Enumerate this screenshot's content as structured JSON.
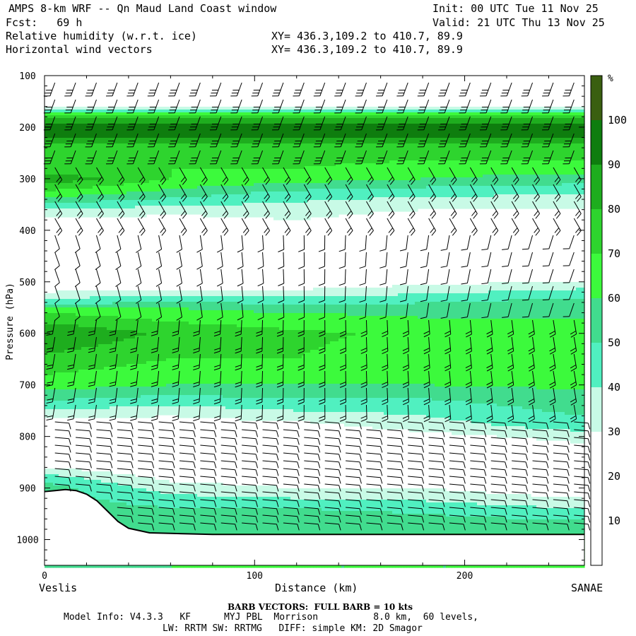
{
  "header": {
    "line1_left": "AMPS 8-km WRF -- Qn Maud Land Coast window",
    "line1_right": "Init: 00 UTC Tue 11 Nov 25",
    "line2_left": "Fcst:   69 h",
    "line2_right": "Valid: 21 UTC Thu 13 Nov 25",
    "line3_left": "Relative humidity (w.r.t. ice)",
    "line3_xy": "XY= 436.3,109.2 to 410.7, 89.9",
    "line4_left": "Horizontal wind vectors",
    "line4_xy": "XY= 436.3,109.2 to 410.7, 89.9"
  },
  "axis_labels": {
    "ylabel": "Pressure (hPa)",
    "xlabel": "Distance (km)",
    "left_endpoint": "Veslis",
    "right_endpoint": "SANAE"
  },
  "footer": {
    "barb_note": "BARB VECTORS:  FULL BARB = 10 kts",
    "model_line1": "Model Info: V4.3.3   KF      MYJ PBL  Morrison          8.0 km,  60 levels,",
    "model_line2": "LW: RRTM SW: RRTMG   DIFF: simple KM: 2D Smagor"
  },
  "colors": {
    "rh_levels": [
      "#ffffff",
      "#ffffff",
      "#ffffff",
      "#c8fae6",
      "#50f0c0",
      "#41dc8e",
      "#3cfa3c",
      "#2ed42e",
      "#1ead1e",
      "#0e7d0e",
      "#3a5f10"
    ]
  },
  "chart_data": {
    "type": "heatmap",
    "title": "Relative humidity (w.r.t. ice)",
    "xlabel": "Distance (km)",
    "ylabel": "Pressure (hPa)",
    "xlim": [
      0,
      257
    ],
    "ylim": [
      1050,
      100
    ],
    "x_ticks": [
      0,
      100,
      200
    ],
    "y_ticks": [
      100,
      200,
      300,
      400,
      500,
      600,
      700,
      800,
      900,
      1000
    ],
    "colorbar": {
      "unit": "%",
      "ticks": [
        10,
        20,
        30,
        40,
        50,
        60,
        70,
        80,
        90,
        100
      ],
      "bounds": [
        0,
        10,
        20,
        30,
        40,
        50,
        60,
        70,
        80,
        90,
        100,
        110
      ]
    },
    "rh_profiles": [
      {
        "x_km": 0,
        "p_hPa": [
          100,
          150,
          165,
          180,
          200,
          215,
          230,
          250,
          280,
          300,
          330,
          360,
          400,
          500,
          540,
          560,
          600,
          640,
          700,
          740,
          780,
          820,
          860,
          880,
          900
        ],
        "rh": [
          10,
          15,
          40,
          75,
          100,
          95,
          80,
          75,
          72,
          88,
          65,
          40,
          15,
          15,
          45,
          70,
          90,
          80,
          65,
          45,
          20,
          15,
          30,
          45,
          55
        ]
      },
      {
        "x_km": 60,
        "p_hPa": [
          100,
          150,
          165,
          180,
          200,
          215,
          230,
          250,
          280,
          300,
          330,
          360,
          400,
          500,
          520,
          550,
          600,
          640,
          700,
          730,
          760,
          800,
          850,
          900,
          950,
          980
        ],
        "rh": [
          10,
          15,
          40,
          75,
          100,
          95,
          80,
          75,
          70,
          70,
          55,
          35,
          15,
          15,
          35,
          60,
          78,
          72,
          60,
          45,
          30,
          15,
          15,
          35,
          55,
          60
        ]
      },
      {
        "x_km": 120,
        "p_hPa": [
          100,
          150,
          165,
          180,
          200,
          215,
          230,
          250,
          280,
          300,
          330,
          360,
          400,
          480,
          500,
          530,
          560,
          600,
          650,
          700,
          740,
          780,
          820,
          860,
          900,
          950,
          990
        ],
        "rh": [
          10,
          15,
          40,
          75,
          100,
          95,
          80,
          75,
          70,
          65,
          45,
          35,
          25,
          15,
          20,
          40,
          60,
          72,
          70,
          60,
          45,
          25,
          15,
          15,
          30,
          55,
          60
        ]
      },
      {
        "x_km": 180,
        "p_hPa": [
          100,
          150,
          165,
          180,
          200,
          215,
          230,
          250,
          280,
          300,
          330,
          360,
          400,
          480,
          520,
          550,
          600,
          640,
          700,
          740,
          780,
          820,
          850,
          900,
          950,
          990
        ],
        "rh": [
          10,
          15,
          40,
          75,
          100,
          95,
          80,
          75,
          65,
          60,
          42,
          30,
          15,
          15,
          38,
          55,
          68,
          65,
          60,
          45,
          35,
          15,
          15,
          30,
          50,
          60
        ]
      },
      {
        "x_km": 257,
        "p_hPa": [
          100,
          150,
          165,
          180,
          200,
          215,
          230,
          250,
          280,
          300,
          330,
          360,
          400,
          480,
          510,
          540,
          600,
          640,
          700,
          740,
          780,
          800,
          850,
          900,
          950,
          990
        ],
        "rh": [
          10,
          15,
          40,
          75,
          100,
          95,
          80,
          75,
          65,
          55,
          40,
          30,
          15,
          15,
          38,
          55,
          65,
          62,
          62,
          55,
          45,
          35,
          15,
          20,
          45,
          60
        ]
      }
    ],
    "terrain": {
      "x_km": [
        0,
        5,
        10,
        15,
        20,
        25,
        30,
        35,
        40,
        50,
        60,
        80,
        100,
        150,
        200,
        257
      ],
      "p_hPa": [
        907,
        905,
        903,
        905,
        912,
        925,
        945,
        965,
        978,
        987,
        988,
        990,
        990,
        990,
        990,
        990
      ]
    }
  }
}
